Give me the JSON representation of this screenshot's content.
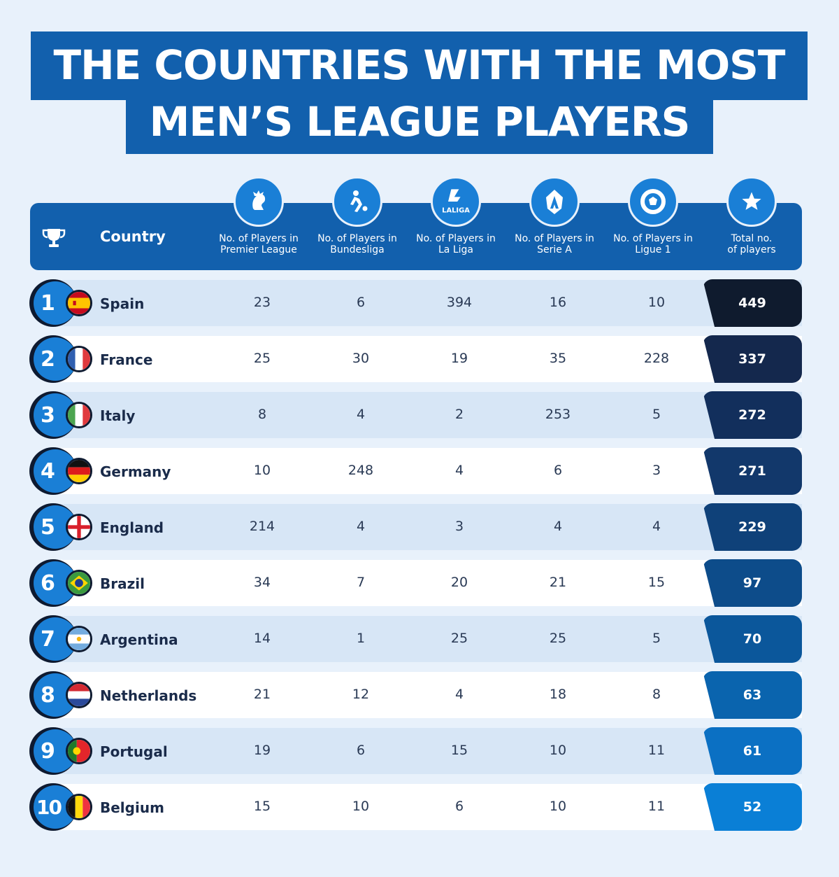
{
  "title": {
    "line1": "THE COUNTRIES WITH THE MOST",
    "line2": "MEN’S LEAGUE PLAYERS"
  },
  "header": {
    "country": "Country",
    "columns": [
      {
        "label_1": "No. of Players in",
        "label_2": "Premier League",
        "icon": "premier-league-lion-icon"
      },
      {
        "label_1": "No. of Players in",
        "label_2": "Bundesliga",
        "icon": "bundesliga-player-icon"
      },
      {
        "label_1": "No. of Players in",
        "label_2": "La Liga",
        "icon": "laliga-logo-icon",
        "icon_text": "LALIGA"
      },
      {
        "label_1": "No. of Players in",
        "label_2": "Serie A",
        "icon": "serie-a-logo-icon"
      },
      {
        "label_1": "No. of Players in",
        "label_2": "Ligue 1",
        "icon": "ligue-1-logo-icon"
      },
      {
        "label_1": "Total no.",
        "label_2": "of players",
        "icon": "star-icon"
      }
    ]
  },
  "colors": {
    "title_bg": "#1260ad",
    "header_bg": "#1260ad",
    "rank_circle": "#1a7fd6",
    "row_alt": "#d7e6f6",
    "total_gradient": [
      "#0f1b2e",
      "#14284d",
      "#122f5c",
      "#12386b",
      "#0f4179",
      "#0d4c8a",
      "#0b579b",
      "#0a64ae",
      "#0b70c3",
      "#0a7fd6"
    ]
  },
  "chart_data": {
    "type": "table",
    "columns": [
      "Country",
      "No. of Players in Premier League",
      "No. of Players in Bundesliga",
      "No. of Players in La Liga",
      "No. of Players in Serie A",
      "No. of Players in Ligue 1",
      "Total no. of players"
    ],
    "rows": [
      {
        "rank": "1",
        "country": "Spain",
        "flag": "spain-flag-icon",
        "values": [
          "23",
          "6",
          "394",
          "16",
          "10"
        ],
        "total": "449"
      },
      {
        "rank": "2",
        "country": "France",
        "flag": "france-flag-icon",
        "values": [
          "25",
          "30",
          "19",
          "35",
          "228"
        ],
        "total": "337"
      },
      {
        "rank": "3",
        "country": "Italy",
        "flag": "italy-flag-icon",
        "values": [
          "8",
          "4",
          "2",
          "253",
          "5"
        ],
        "total": "272"
      },
      {
        "rank": "4",
        "country": "Germany",
        "flag": "germany-flag-icon",
        "values": [
          "10",
          "248",
          "4",
          "6",
          "3"
        ],
        "total": "271"
      },
      {
        "rank": "5",
        "country": "England",
        "flag": "england-flag-icon",
        "values": [
          "214",
          "4",
          "3",
          "4",
          "4"
        ],
        "total": "229"
      },
      {
        "rank": "6",
        "country": "Brazil",
        "flag": "brazil-flag-icon",
        "values": [
          "34",
          "7",
          "20",
          "21",
          "15"
        ],
        "total": "97"
      },
      {
        "rank": "7",
        "country": "Argentina",
        "flag": "argentina-flag-icon",
        "values": [
          "14",
          "1",
          "25",
          "25",
          "5"
        ],
        "total": "70"
      },
      {
        "rank": "8",
        "country": "Netherlands",
        "flag": "netherlands-flag-icon",
        "values": [
          "21",
          "12",
          "4",
          "18",
          "8"
        ],
        "total": "63"
      },
      {
        "rank": "9",
        "country": "Portugal",
        "flag": "portugal-flag-icon",
        "values": [
          "19",
          "6",
          "15",
          "10",
          "11"
        ],
        "total": "61"
      },
      {
        "rank": "10",
        "country": "Belgium",
        "flag": "belgium-flag-icon",
        "values": [
          "15",
          "10",
          "6",
          "10",
          "11"
        ],
        "total": "52"
      }
    ]
  }
}
